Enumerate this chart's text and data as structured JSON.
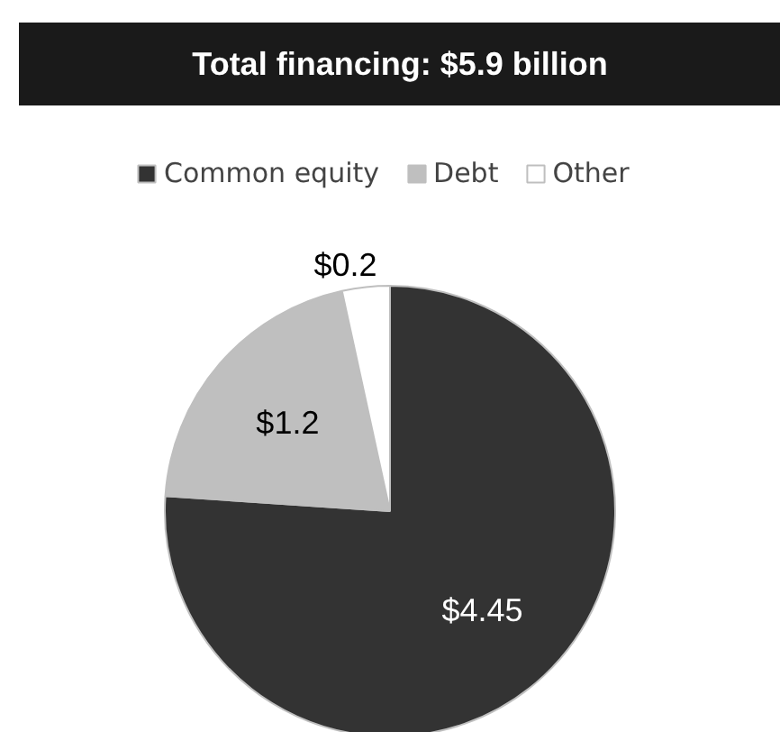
{
  "chart_data": {
    "type": "pie",
    "title": "Total financing: $5.9 billion",
    "categories": [
      "Common equity",
      "Debt",
      "Other"
    ],
    "values": [
      4.45,
      1.2,
      0.2
    ],
    "colors": [
      "#333333",
      "#bfbfbf",
      "#ffffff"
    ],
    "value_labels": [
      "$4.45",
      "$1.2",
      "$0.2"
    ],
    "legend": "top"
  }
}
